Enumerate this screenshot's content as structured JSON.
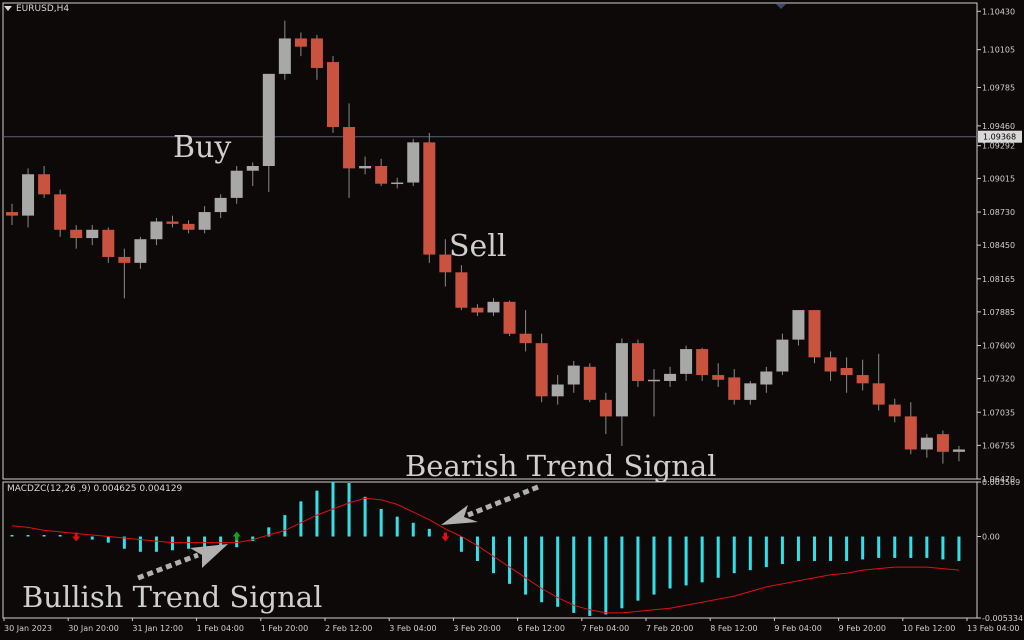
{
  "chart_title": "EURUSD,H4",
  "indicator_title": "MACDZC(12,26 ,9) 0.004625 0.004129",
  "annotations": {
    "buy": "Buy",
    "sell": "Sell",
    "bearish": "Bearish Trend Signal",
    "bullish": "Bullish Trend Signal"
  },
  "current_price_label": "1.09368",
  "colors": {
    "background": "#0d0908",
    "bull_candle": "#a8a8a8",
    "bear_candle": "#c9533e",
    "macd_histogram": "#33e0e8",
    "signal_line": "#e01010",
    "up_arrow": "#18a018",
    "down_arrow": "#e01010",
    "pointer_arrow": "#b0b0b0"
  },
  "chart_data": [
    {
      "type": "candlestick",
      "symbol": "EURUSD",
      "timeframe": "H4",
      "ylim": [
        1.0647,
        1.105
      ],
      "y_ticks": [
        "1.10430",
        "1.10105",
        "1.09785",
        "1.09460",
        "1.09292",
        "1.09015",
        "1.08730",
        "1.08450",
        "1.08165",
        "1.07885",
        "1.07600",
        "1.07320",
        "1.07035",
        "1.06755",
        "1.06470"
      ],
      "x_ticks": [
        "30 Jan 2023",
        "30 Jan 20:00",
        "31 Jan 12:00",
        "1 Feb 04:00",
        "1 Feb 20:00",
        "2 Feb 12:00",
        "3 Feb 04:00",
        "3 Feb 20:00",
        "6 Feb 12:00",
        "7 Feb 04:00",
        "7 Feb 20:00",
        "8 Feb 12:00",
        "9 Feb 04:00",
        "9 Feb 20:00",
        "10 Feb 12:00",
        "13 Feb 04:00"
      ],
      "current_price": 1.09368,
      "candles": [
        {
          "o": 1.0873,
          "h": 1.088,
          "l": 1.0862,
          "c": 1.087
        },
        {
          "o": 1.087,
          "h": 1.091,
          "l": 1.086,
          "c": 1.0905
        },
        {
          "o": 1.0905,
          "h": 1.0912,
          "l": 1.0885,
          "c": 1.0888
        },
        {
          "o": 1.0888,
          "h": 1.0892,
          "l": 1.0852,
          "c": 1.0858
        },
        {
          "o": 1.0858,
          "h": 1.0862,
          "l": 1.0842,
          "c": 1.0851
        },
        {
          "o": 1.0851,
          "h": 1.0862,
          "l": 1.0845,
          "c": 1.0858
        },
        {
          "o": 1.0858,
          "h": 1.086,
          "l": 1.083,
          "c": 1.0835
        },
        {
          "o": 1.0835,
          "h": 1.0842,
          "l": 1.08,
          "c": 1.083
        },
        {
          "o": 1.083,
          "h": 1.0852,
          "l": 1.0825,
          "c": 1.085
        },
        {
          "o": 1.085,
          "h": 1.0868,
          "l": 1.0845,
          "c": 1.0865
        },
        {
          "o": 1.0865,
          "h": 1.087,
          "l": 1.086,
          "c": 1.0863
        },
        {
          "o": 1.0863,
          "h": 1.0866,
          "l": 1.0855,
          "c": 1.0858
        },
        {
          "o": 1.0858,
          "h": 1.0878,
          "l": 1.0855,
          "c": 1.0873
        },
        {
          "o": 1.0873,
          "h": 1.0888,
          "l": 1.0868,
          "c": 1.0885
        },
        {
          "o": 1.0885,
          "h": 1.0912,
          "l": 1.088,
          "c": 1.0908
        },
        {
          "o": 1.0908,
          "h": 1.0915,
          "l": 1.0895,
          "c": 1.0912
        },
        {
          "o": 1.0912,
          "h": 1.099,
          "l": 1.089,
          "c": 1.099
        },
        {
          "o": 1.099,
          "h": 1.1035,
          "l": 1.0985,
          "c": 1.102
        },
        {
          "o": 1.102,
          "h": 1.1025,
          "l": 1.1005,
          "c": 1.1013
        },
        {
          "o": 1.102,
          "h": 1.1023,
          "l": 1.0985,
          "c": 1.0995
        },
        {
          "o": 1.1,
          "h": 1.1005,
          "l": 1.094,
          "c": 1.0945
        },
        {
          "o": 1.0945,
          "h": 1.0965,
          "l": 1.0885,
          "c": 1.091
        },
        {
          "o": 1.091,
          "h": 1.092,
          "l": 1.0905,
          "c": 1.0912
        },
        {
          "o": 1.0912,
          "h": 1.0918,
          "l": 1.0895,
          "c": 1.0897
        },
        {
          "o": 1.0897,
          "h": 1.0902,
          "l": 1.0893,
          "c": 1.0898
        },
        {
          "o": 1.0898,
          "h": 1.0935,
          "l": 1.0895,
          "c": 1.0932
        },
        {
          "o": 1.0932,
          "h": 1.094,
          "l": 1.083,
          "c": 1.0837
        },
        {
          "o": 1.0837,
          "h": 1.085,
          "l": 1.081,
          "c": 1.0822
        },
        {
          "o": 1.0822,
          "h": 1.0828,
          "l": 1.079,
          "c": 1.0792
        },
        {
          "o": 1.0792,
          "h": 1.0795,
          "l": 1.0785,
          "c": 1.0788
        },
        {
          "o": 1.0788,
          "h": 1.08,
          "l": 1.0785,
          "c": 1.0797
        },
        {
          "o": 1.0797,
          "h": 1.0798,
          "l": 1.0768,
          "c": 1.077
        },
        {
          "o": 1.077,
          "h": 1.079,
          "l": 1.0755,
          "c": 1.0762
        },
        {
          "o": 1.0762,
          "h": 1.077,
          "l": 1.0712,
          "c": 1.0717
        },
        {
          "o": 1.0717,
          "h": 1.0735,
          "l": 1.071,
          "c": 1.0727
        },
        {
          "o": 1.0727,
          "h": 1.0747,
          "l": 1.072,
          "c": 1.0743
        },
        {
          "o": 1.0742,
          "h": 1.0745,
          "l": 1.0712,
          "c": 1.0714
        },
        {
          "o": 1.0714,
          "h": 1.072,
          "l": 1.0685,
          "c": 1.07
        },
        {
          "o": 1.07,
          "h": 1.0766,
          "l": 1.0675,
          "c": 1.0762
        },
        {
          "o": 1.0762,
          "h": 1.0765,
          "l": 1.0725,
          "c": 1.073
        },
        {
          "o": 1.073,
          "h": 1.074,
          "l": 1.07,
          "c": 1.0731
        },
        {
          "o": 1.073,
          "h": 1.0742,
          "l": 1.0725,
          "c": 1.0736
        },
        {
          "o": 1.0736,
          "h": 1.076,
          "l": 1.073,
          "c": 1.0757
        },
        {
          "o": 1.0757,
          "h": 1.0758,
          "l": 1.073,
          "c": 1.0735
        },
        {
          "o": 1.0735,
          "h": 1.0745,
          "l": 1.0725,
          "c": 1.0731
        },
        {
          "o": 1.0733,
          "h": 1.074,
          "l": 1.071,
          "c": 1.0714
        },
        {
          "o": 1.0714,
          "h": 1.073,
          "l": 1.071,
          "c": 1.0728
        },
        {
          "o": 1.0727,
          "h": 1.0742,
          "l": 1.072,
          "c": 1.0738
        },
        {
          "o": 1.0738,
          "h": 1.077,
          "l": 1.0735,
          "c": 1.0765
        },
        {
          "o": 1.0765,
          "h": 1.079,
          "l": 1.076,
          "c": 1.079
        },
        {
          "o": 1.079,
          "h": 1.079,
          "l": 1.0745,
          "c": 1.075
        },
        {
          "o": 1.075,
          "h": 1.0755,
          "l": 1.073,
          "c": 1.0738
        },
        {
          "o": 1.0741,
          "h": 1.075,
          "l": 1.072,
          "c": 1.0735
        },
        {
          "o": 1.0735,
          "h": 1.0748,
          "l": 1.0722,
          "c": 1.0728
        },
        {
          "o": 1.0728,
          "h": 1.0753,
          "l": 1.0705,
          "c": 1.071
        },
        {
          "o": 1.071,
          "h": 1.0715,
          "l": 1.0695,
          "c": 1.07
        },
        {
          "o": 1.07,
          "h": 1.0712,
          "l": 1.0668,
          "c": 1.0672
        },
        {
          "o": 1.0672,
          "h": 1.0685,
          "l": 1.0665,
          "c": 1.0682
        },
        {
          "o": 1.0685,
          "h": 1.0688,
          "l": 1.066,
          "c": 1.067
        },
        {
          "o": 1.067,
          "h": 1.0675,
          "l": 1.0662,
          "c": 1.0672
        }
      ]
    },
    {
      "type": "bar",
      "name": "MACDZC(12,26 ,9)",
      "ylim": [
        -0.005334,
        0.003569
      ],
      "y_ticks": [
        "0.003569",
        "0.00",
        "-0.005334"
      ],
      "histogram": [
        0.0001,
        0.0001,
        0.0001,
        0.0001,
        0.0,
        -0.0002,
        -0.0004,
        -0.0008,
        -0.001,
        -0.001,
        -0.0009,
        -0.0008,
        -0.0008,
        -0.0008,
        -0.0007,
        -0.0003,
        0.0006,
        0.0014,
        0.0023,
        0.003,
        0.0036,
        0.0035,
        0.0026,
        0.0018,
        0.0013,
        0.0009,
        0.0005,
        0.0002,
        -0.001,
        -0.0016,
        -0.0024,
        -0.0031,
        -0.0038,
        -0.0043,
        -0.0046,
        -0.005,
        -0.0052,
        -0.0051,
        -0.0047,
        -0.0042,
        -0.0038,
        -0.0034,
        -0.0032,
        -0.003,
        -0.0027,
        -0.0024,
        -0.0022,
        -0.002,
        -0.0018,
        -0.0016,
        -0.0016,
        -0.0016,
        -0.0016,
        -0.0015,
        -0.0014,
        -0.0014,
        -0.0014,
        -0.0014,
        -0.0015,
        -0.0016
      ],
      "signal_line": [
        0.0007,
        0.0006,
        0.0004,
        0.0003,
        0.0002,
        0.0001,
        0.0,
        -0.0001,
        -0.0002,
        -0.0003,
        -0.0004,
        -0.0004,
        -0.0004,
        -0.0004,
        -0.0004,
        -0.0002,
        0.0001,
        0.0004,
        0.0009,
        0.0014,
        0.0018,
        0.0022,
        0.0025,
        0.0024,
        0.0021,
        0.0016,
        0.0011,
        0.0005,
        0.0,
        -0.0006,
        -0.0013,
        -0.002,
        -0.0027,
        -0.0034,
        -0.004,
        -0.0045,
        -0.0048,
        -0.005,
        -0.005,
        -0.0049,
        -0.0048,
        -0.0047,
        -0.0045,
        -0.0043,
        -0.0041,
        -0.0039,
        -0.0036,
        -0.0033,
        -0.0031,
        -0.0029,
        -0.0027,
        -0.0025,
        -0.0024,
        -0.0022,
        -0.0021,
        -0.002,
        -0.002,
        -0.002,
        -0.0021,
        -0.0022
      ],
      "up_arrows": [
        14
      ],
      "down_arrows": [
        4,
        27
      ]
    }
  ]
}
